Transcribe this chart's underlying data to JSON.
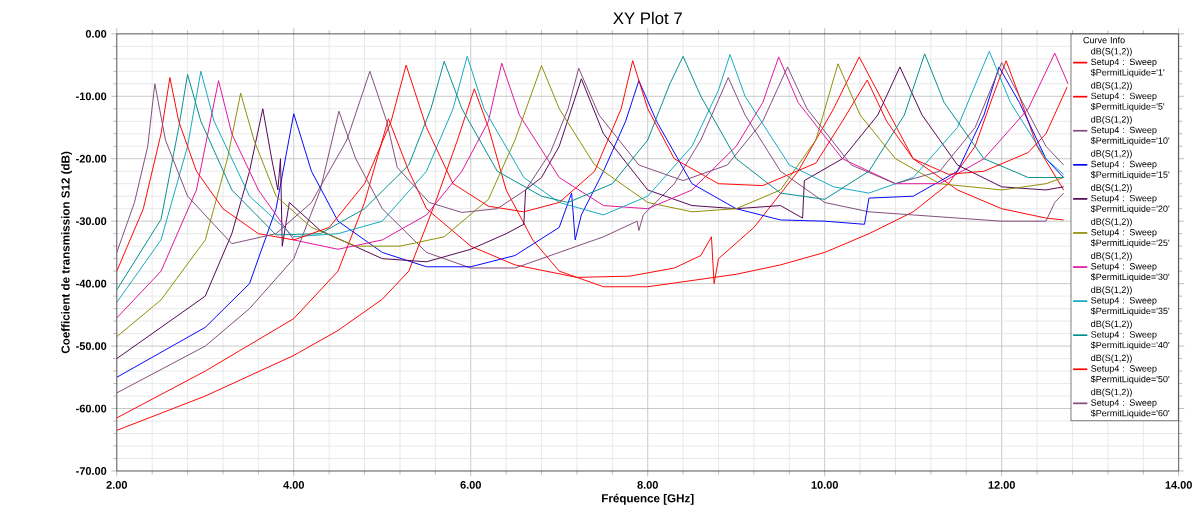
{
  "chart_data": {
    "type": "line",
    "title": "XY Plot 7",
    "xlabel": "Fréquence [GHz]",
    "ylabel": "Coefficient de transmission S12 (dB)",
    "legend_title": "Curve Info",
    "legend": "top right",
    "grid": true,
    "xlim": [
      2,
      14
    ],
    "ylim": [
      -70,
      0
    ],
    "xticks": [
      {
        "value": 2,
        "label": "2.00"
      },
      {
        "value": 4,
        "label": "4.00"
      },
      {
        "value": 6,
        "label": "6.00"
      },
      {
        "value": 8,
        "label": "8.00"
      },
      {
        "value": 10,
        "label": "10.00"
      },
      {
        "value": 12,
        "label": "12.00"
      },
      {
        "value": 14,
        "label": "14.00"
      }
    ],
    "yticks": [
      {
        "value": -70,
        "label": "-70.00"
      },
      {
        "value": -60,
        "label": "-60.00"
      },
      {
        "value": -50,
        "label": "-50.00"
      },
      {
        "value": -40,
        "label": "-40.00"
      },
      {
        "value": -30,
        "label": "-30.00"
      },
      {
        "value": -20,
        "label": "-20.00"
      },
      {
        "value": -10,
        "label": "-10.00"
      },
      {
        "value": 0,
        "label": "0.00"
      }
    ],
    "series": [
      {
        "name": "dB(S(1,2)) Setup4 : Sweep $PermitLiquide='1'",
        "color": "#ff0000",
        "x": [
          2,
          3,
          4,
          4.5,
          5,
          5.3,
          5.6,
          5.85,
          6.04,
          6.2,
          6.4,
          6.7,
          7,
          7.5,
          8,
          8.5,
          9,
          9.5,
          10,
          10.5,
          11,
          11.4,
          11.7,
          11.9,
          12.05,
          12.2,
          12.4,
          12.7
        ],
        "values": [
          -63.5,
          -58,
          -51.5,
          -47.5,
          -42.5,
          -38,
          -27,
          -17,
          -8.8,
          -15,
          -25,
          -33,
          -38,
          -40.5,
          -40.5,
          -39.5,
          -38.5,
          -37,
          -35,
          -32,
          -28.5,
          -24,
          -18,
          -10,
          -4.3,
          -10,
          -18,
          -25
        ]
      },
      {
        "name": "dB(S(1,2)) Setup4 : Sweep $PermitLiquide='5'",
        "color": "#ff0000",
        "x": [
          2,
          3,
          4,
          4.5,
          4.8,
          5.07,
          5.3,
          5.5,
          6,
          6.5,
          7.2,
          7.8,
          8.3,
          8.6,
          8.72,
          8.75,
          8.8,
          9.2,
          9.7,
          10.1,
          10.39,
          10.7,
          11,
          11.5,
          12,
          12.5,
          12.7
        ],
        "values": [
          -61.5,
          -54,
          -45.6,
          -38,
          -27,
          -13.6,
          -22,
          -28,
          -34,
          -37,
          -39,
          -38.8,
          -37.5,
          -35.5,
          -32.5,
          -40,
          -36,
          -31,
          -22,
          -12,
          -3.7,
          -12,
          -20,
          -25,
          -28,
          -29.5,
          -29.8
        ]
      },
      {
        "name": "dB(S(1,2)) Setup4 : Sweep $PermitLiquide='10'",
        "color": "#804a7a",
        "x": [
          2,
          3,
          3.5,
          4,
          4.3,
          4.51,
          4.7,
          5,
          5.5,
          6,
          6.5,
          7,
          7.5,
          7.88,
          7.9,
          7.95,
          8.3,
          8.6,
          8.91,
          9.1,
          9.5,
          10,
          10.5,
          11,
          11.5,
          12,
          12.5,
          12.6,
          12.7
        ],
        "values": [
          -57.5,
          -50,
          -44,
          -36,
          -25,
          -12.4,
          -20,
          -28,
          -35,
          -37.5,
          -37.5,
          -35,
          -32.5,
          -30,
          -31.5,
          -29,
          -24,
          -17,
          -7,
          -13,
          -22,
          -27,
          -28.5,
          -29,
          -29.5,
          -30,
          -30,
          -27,
          -25.5
        ]
      },
      {
        "name": "dB(S(1,2)) Setup4 : Sweep $PermitLiquide='15'",
        "color": "#0000ff",
        "x": [
          2,
          3,
          3.5,
          3.8,
          4,
          4.2,
          4.5,
          5,
          5.5,
          6,
          6.5,
          7,
          7.14,
          7.18,
          7.25,
          7.5,
          7.75,
          7.9,
          8.1,
          8.5,
          9,
          9.5,
          10,
          10.45,
          10.5,
          11,
          11.5,
          11.8,
          11.97,
          12.2,
          12.5,
          12.7
        ],
        "values": [
          -55,
          -47,
          -40,
          -28,
          -12.8,
          -22,
          -30,
          -35,
          -37.3,
          -37.3,
          -35.5,
          -31,
          -25.5,
          -33,
          -29,
          -22,
          -14,
          -7.5,
          -14,
          -24,
          -28,
          -29.8,
          -30,
          -30.5,
          -26.3,
          -26,
          -22,
          -13,
          -5.3,
          -11,
          -20,
          -23
        ]
      },
      {
        "name": "dB(S(1,2)) Setup4 : Sweep $PermitLiquide='20'",
        "color": "#500050",
        "x": [
          2,
          3,
          3.3,
          3.5,
          3.65,
          3.75,
          3.82,
          3.85,
          3.87,
          3.95,
          4.3,
          5,
          5.5,
          6,
          6.4,
          6.6,
          6.62,
          6.8,
          7,
          7.25,
          7.5,
          8,
          8.5,
          9,
          9.5,
          9.75,
          9.77,
          10.2,
          10.6,
          10.85,
          11.1,
          11.5,
          12,
          12.5,
          12.7
        ],
        "values": [
          -52,
          -42,
          -32,
          -22,
          -12,
          -20,
          -25,
          -20,
          -34,
          -27,
          -31.5,
          -36,
          -36.5,
          -34.5,
          -32,
          -30.5,
          -25,
          -23,
          -18,
          -7.2,
          -16,
          -25,
          -27.5,
          -28,
          -27.5,
          -29.5,
          -23.5,
          -20,
          -13,
          -5.3,
          -13,
          -21,
          -24.5,
          -25,
          -24.5
        ]
      },
      {
        "name": "dB(S(1,2)) Setup4 : Sweep $PermitLiquide='25'",
        "color": "#8c8c00",
        "x": [
          2,
          2.5,
          3,
          3.25,
          3.4,
          3.55,
          3.8,
          4.2,
          4.7,
          5.2,
          5.7,
          6.2,
          6.5,
          6.8,
          7,
          7.4,
          8,
          8.5,
          9,
          9.5,
          9.9,
          10.15,
          10.4,
          10.8,
          11.3,
          12,
          12.5,
          12.7
        ],
        "values": [
          -48.5,
          -42.6,
          -33,
          -20,
          -9.5,
          -17,
          -26,
          -31,
          -34,
          -34,
          -32.5,
          -26.5,
          -17,
          -5.1,
          -12,
          -21,
          -27,
          -28.5,
          -28,
          -25,
          -17,
          -4.8,
          -13,
          -20,
          -24,
          -25,
          -24,
          -23
        ]
      },
      {
        "name": "dB(S(1,2)) Setup4 : Sweep $PermitLiquide='30'",
        "color": "#e0109a",
        "x": [
          2,
          2.5,
          2.9,
          3.15,
          3.3,
          3.6,
          4,
          4.5,
          5,
          5.5,
          5.9,
          6.2,
          6.35,
          6.55,
          7,
          7.5,
          8,
          8.5,
          9,
          9.3,
          9.48,
          9.7,
          10.2,
          10.8,
          11.3,
          11.8,
          12.3,
          12.6,
          12.75
        ],
        "values": [
          -45.5,
          -38,
          -25,
          -7.5,
          -16,
          -25,
          -33,
          -34.5,
          -33,
          -29,
          -22,
          -14,
          -4.7,
          -13,
          -23,
          -27.5,
          -28,
          -25,
          -18,
          -11,
          -3.7,
          -11,
          -20,
          -24,
          -24,
          -20,
          -12,
          -3.1,
          -8
        ]
      },
      {
        "name": "dB(S(1,2)) Setup4 : Sweep $PermitLiquide='35'",
        "color": "#10a8c0",
        "x": [
          2,
          2.5,
          2.8,
          2.95,
          3.1,
          3.5,
          4,
          4.5,
          5,
          5.5,
          5.8,
          5.96,
          6.15,
          6.6,
          7,
          7.5,
          8,
          8.5,
          8.8,
          8.93,
          9.1,
          9.6,
          10.1,
          10.5,
          11,
          11.5,
          11.86,
          12.1,
          12.5,
          12.7
        ],
        "values": [
          -43,
          -33,
          -18,
          -6,
          -14,
          -26,
          -32.5,
          -32,
          -30,
          -22,
          -12,
          -3.6,
          -12,
          -23,
          -27,
          -29,
          -26,
          -18,
          -9,
          -3.3,
          -10,
          -21,
          -24.5,
          -25.5,
          -23,
          -15,
          -2.8,
          -11,
          -20,
          -22.5
        ]
      },
      {
        "name": "dB(S(1,2)) Setup4 : Sweep $PermitLiquide='40'",
        "color": "#008c8c",
        "x": [
          2,
          2.5,
          2.7,
          2.8,
          2.95,
          3.3,
          3.8,
          4.3,
          4.8,
          5.3,
          5.55,
          5.7,
          5.9,
          6.3,
          6.8,
          7.1,
          7.6,
          8,
          8.25,
          8.4,
          8.6,
          9,
          9.5,
          10,
          10.5,
          10.9,
          11.13,
          11.35,
          11.8,
          12.3,
          12.7
        ],
        "values": [
          -41,
          -29.7,
          -15,
          -6.5,
          -14,
          -25,
          -32.2,
          -32,
          -28,
          -21,
          -12,
          -4.4,
          -12,
          -22,
          -26,
          -27,
          -24,
          -17,
          -8,
          -3.6,
          -10,
          -20,
          -25.5,
          -26.5,
          -22,
          -13,
          -3.2,
          -11,
          -20,
          -23,
          -23
        ]
      },
      {
        "name": "dB(S(1,2)) Setup4 : Sweep $PermitLiquide='50'",
        "color": "#ff0000",
        "x": [
          2,
          2.3,
          2.5,
          2.6,
          2.7,
          2.9,
          3.2,
          3.6,
          4,
          4.4,
          4.8,
          5.1,
          5.27,
          5.5,
          5.8,
          6.2,
          6.6,
          7,
          7.4,
          7.7,
          7.83,
          8,
          8.3,
          8.8,
          9.3,
          9.9,
          10.2,
          10.48,
          10.7,
          11,
          11.4,
          11.8,
          12.3,
          12.5,
          12.74
        ],
        "values": [
          -38,
          -28,
          -16,
          -7,
          -14,
          -22,
          -28,
          -32,
          -33,
          -31,
          -24,
          -14,
          -5,
          -15,
          -24,
          -27.6,
          -28.5,
          -27,
          -22,
          -12,
          -4.3,
          -12,
          -20,
          -24,
          -24.3,
          -20.7,
          -14,
          -7.4,
          -14,
          -20,
          -22.5,
          -22,
          -19,
          -16,
          -8.5
        ]
      },
      {
        "name": "dB(S(1,2)) Setup4 : Sweep $PermitLiquide='60'",
        "color": "#804a7a",
        "x": [
          2,
          2.2,
          2.35,
          2.43,
          2.55,
          2.8,
          3.3,
          3.8,
          4.2,
          4.6,
          4.86,
          5.05,
          5.17,
          5.53,
          5.9,
          6.3,
          6.62,
          6.9,
          7.1,
          7.22,
          7.45,
          7.9,
          8.4,
          8.9,
          9.3,
          9.58,
          9.8,
          10.3,
          10.8,
          11.3,
          11.7,
          12.0,
          12.2,
          12.5,
          12.7
        ],
        "values": [
          -35,
          -27,
          -18,
          -8,
          -17,
          -26,
          -33.6,
          -32,
          -27,
          -17,
          -6,
          -14,
          -21.4,
          -27,
          -28.6,
          -28,
          -25,
          -19,
          -12,
          -5.5,
          -13,
          -21,
          -23.5,
          -21,
          -14,
          -5.3,
          -12,
          -21,
          -24,
          -22,
          -15,
          -4.6,
          -10,
          -18,
          -21
        ]
      }
    ]
  }
}
